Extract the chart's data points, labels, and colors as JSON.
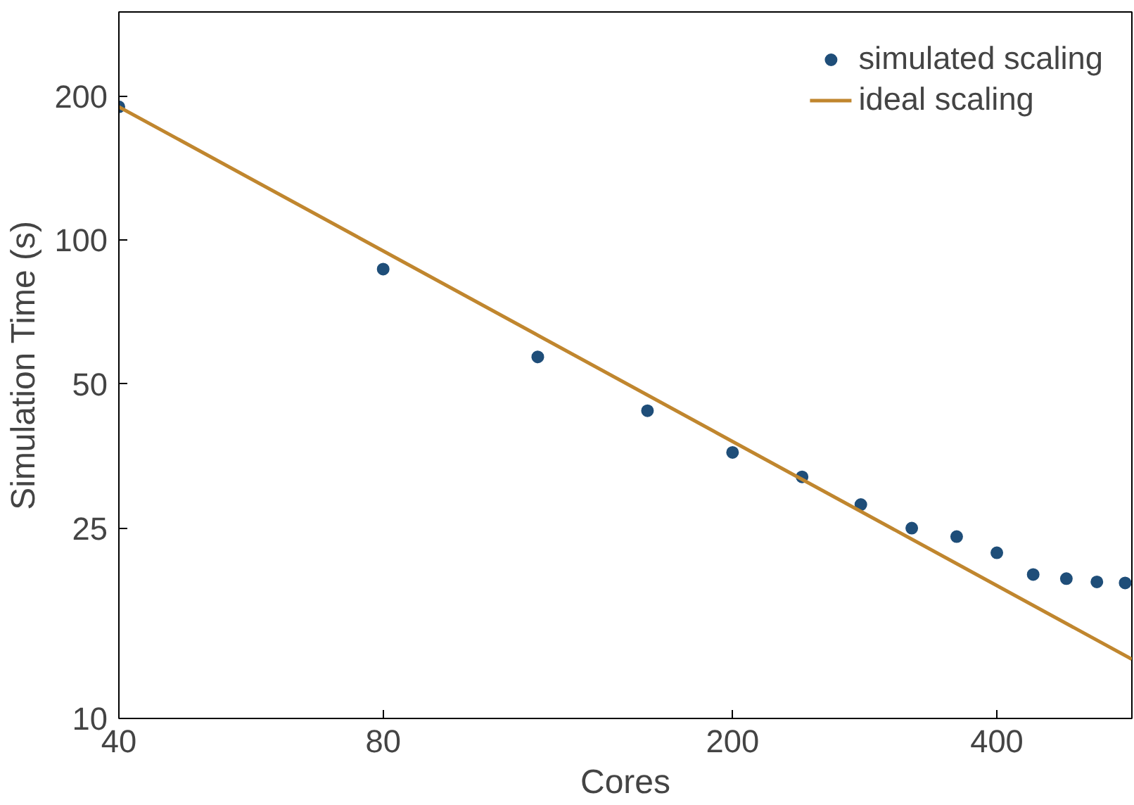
{
  "chart_data": {
    "type": "scatter",
    "xlabel": "Cores",
    "ylabel": "Simulation Time (s)",
    "log": "xy",
    "xlim": [
      40,
      570
    ],
    "ylim": [
      10,
      300
    ],
    "xticks": [
      40,
      80,
      200,
      400
    ],
    "yticks": [
      10,
      25,
      50,
      100,
      200
    ],
    "grid": false,
    "legend": "top right",
    "series": [
      {
        "name": "simulated scaling",
        "marker": "circle",
        "color": "#1f4e79",
        "x": [
          40,
          80,
          120,
          160,
          200,
          240,
          280,
          320,
          360,
          400,
          440,
          480,
          520,
          560
        ],
        "values": [
          190,
          87,
          57,
          44,
          36,
          32,
          28,
          25,
          24,
          22.2,
          20,
          19.6,
          19.3,
          19.2
        ]
      },
      {
        "name": "ideal scaling",
        "type": "line",
        "line_style": "solid",
        "color": "#c0862e",
        "x": [
          40,
          570
        ],
        "values": [
          190,
          13.3
        ]
      }
    ]
  }
}
